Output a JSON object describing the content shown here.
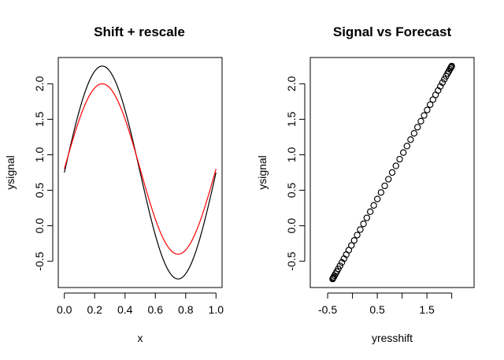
{
  "chart_data": [
    {
      "type": "line",
      "title": "Shift + rescale",
      "xlabel": "x",
      "ylabel": "ysignal",
      "xlim": [
        -0.04,
        1.04
      ],
      "ylim": [
        -0.87,
        2.37
      ],
      "xticks": [
        0.0,
        0.2,
        0.4,
        0.6,
        0.8,
        1.0
      ],
      "xtick_labels": [
        "0.0",
        "0.2",
        "0.4",
        "0.6",
        "0.8",
        "1.0"
      ],
      "yticks": [
        -0.5,
        0.0,
        0.5,
        1.0,
        1.5,
        2.0
      ],
      "ytick_labels": [
        "-0.5",
        "0.0",
        "0.5",
        "1.0",
        "1.5",
        "2.0"
      ],
      "x_range": [
        0,
        1
      ],
      "n_points": 101,
      "series": [
        {
          "name": "ysignal",
          "color": "#000000",
          "function": "0.75 + 1.5*sin(2*pi*x)",
          "offset": 0.75,
          "amplitude": 1.5
        },
        {
          "name": "yresshift",
          "color": "#ff0000",
          "function": "0.8 + 1.2*sin(2*pi*x)",
          "offset": 0.8,
          "amplitude": 1.2
        }
      ]
    },
    {
      "type": "scatter",
      "title": "Signal vs Forecast",
      "xlabel": "yresshift",
      "ylabel": "ysignal",
      "xlim": [
        -0.85,
        2.45
      ],
      "ylim": [
        -0.87,
        2.37
      ],
      "xticks": [
        -0.5,
        0.0,
        0.5,
        1.0,
        1.5,
        2.0
      ],
      "xtick_labels": [
        "-0.5",
        "",
        "0.5",
        "",
        "1.5",
        ""
      ],
      "yticks": [
        -0.5,
        0.0,
        0.5,
        1.0,
        1.5,
        2.0
      ],
      "ytick_labels": [
        "-0.5",
        "0.0",
        "0.5",
        "1.0",
        "1.5",
        "2.0"
      ],
      "marker": "open-circle",
      "relation": "ysignal = 0.75 + 1.25*(yresshift - 0.8)",
      "points_from_series": [
        "yresshift",
        "ysignal"
      ]
    }
  ]
}
